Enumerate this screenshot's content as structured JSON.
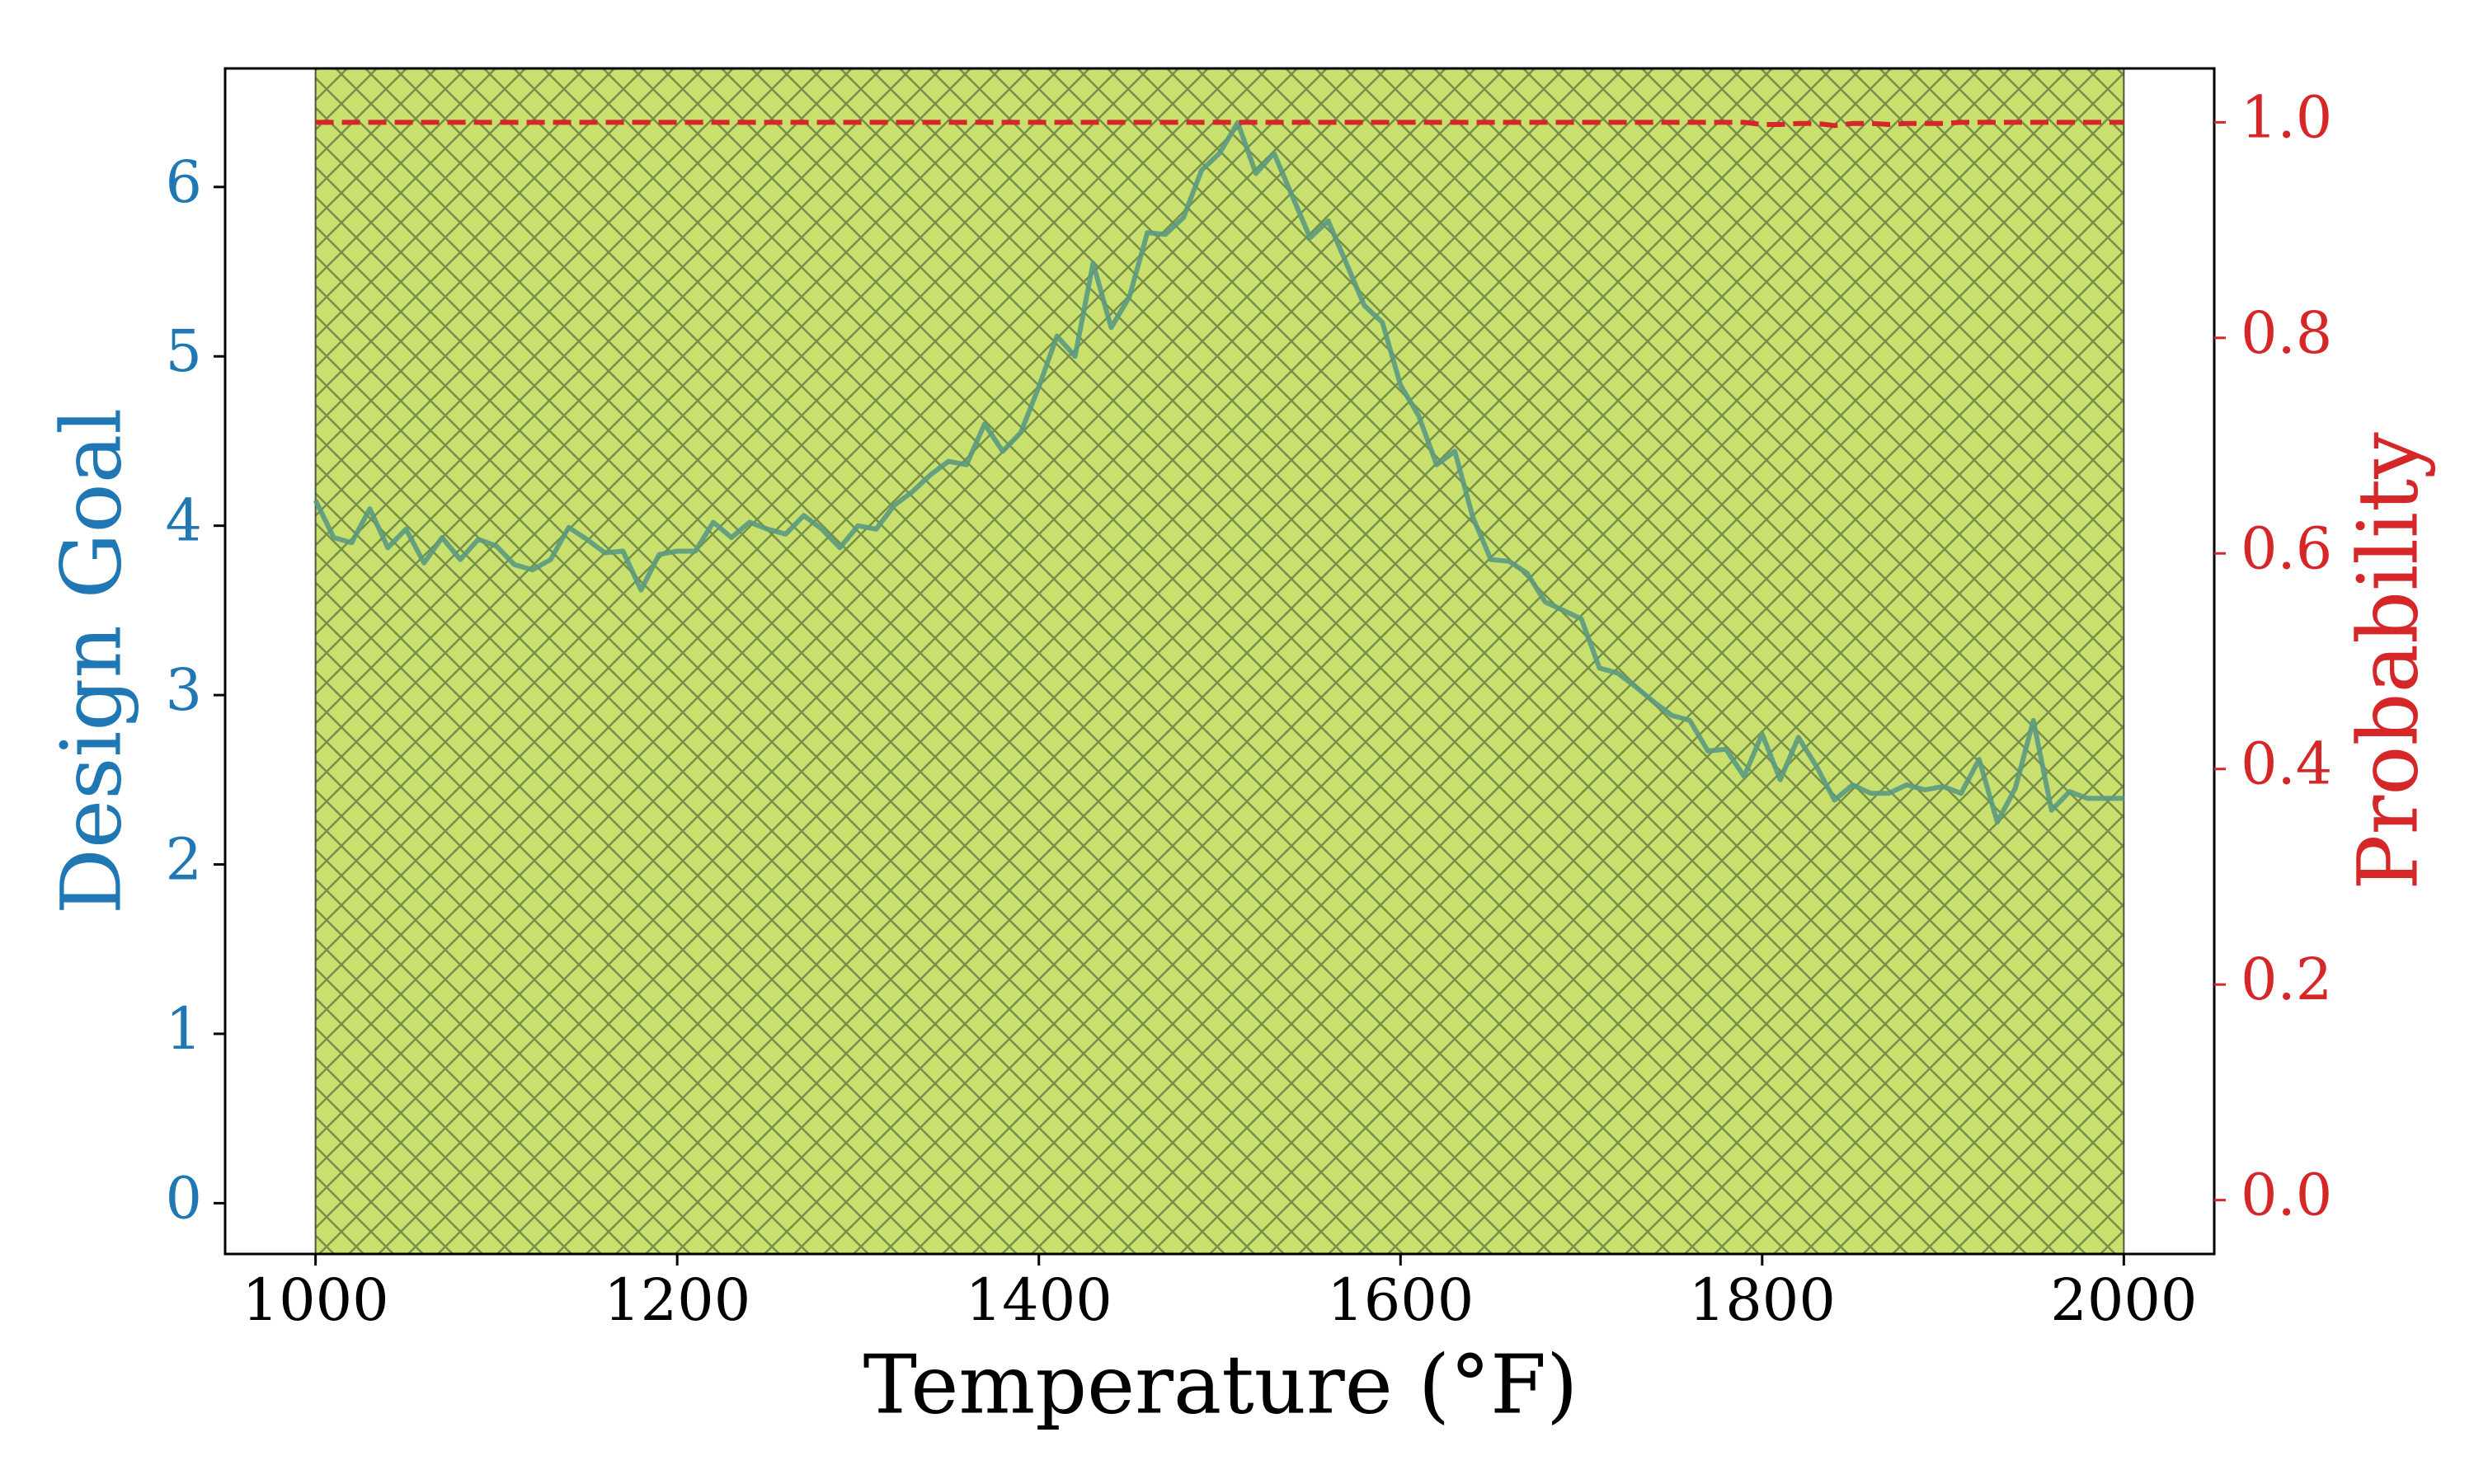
{
  "chart_data": {
    "type": "line",
    "xlabel": "Temperature (°F)",
    "ylabel": "Design Goal",
    "y2label": "Probability",
    "xlim": [
      950,
      2050
    ],
    "xticks": [
      1000,
      1200,
      1400,
      1600,
      1800,
      2000
    ],
    "ylim": [
      -0.3,
      6.7
    ],
    "yticks": [
      0,
      1,
      2,
      3,
      4,
      5,
      6
    ],
    "ycolor": "#1f77b4",
    "y2lim": [
      -0.05,
      1.05
    ],
    "y2ticks": [
      {
        "value": 0,
        "label": "0.0"
      },
      {
        "value": 0.2,
        "label": "0.2"
      },
      {
        "value": 0.4,
        "label": "0.4"
      },
      {
        "value": 0.6,
        "label": "0.6"
      },
      {
        "value": 0.8,
        "label": "0.8"
      },
      {
        "value": 1,
        "label": "1.0"
      }
    ],
    "y2color": "#d62728",
    "span": {
      "x": [
        1000,
        2000
      ],
      "color": "#c3db5e",
      "hatch": "xx"
    },
    "x": [
      1000,
      1010,
      1020,
      1030,
      1040,
      1050,
      1060,
      1070,
      1080,
      1090,
      1100,
      1110,
      1120,
      1130,
      1140,
      1150,
      1160,
      1170,
      1180,
      1190,
      1200,
      1210,
      1220,
      1230,
      1240,
      1250,
      1260,
      1270,
      1280,
      1290,
      1300,
      1310,
      1320,
      1330,
      1340,
      1350,
      1360,
      1370,
      1380,
      1390,
      1400,
      1410,
      1420,
      1430,
      1440,
      1450,
      1460,
      1470,
      1480,
      1490,
      1500,
      1510,
      1520,
      1530,
      1540,
      1550,
      1560,
      1570,
      1580,
      1590,
      1600,
      1610,
      1620,
      1630,
      1640,
      1650,
      1660,
      1670,
      1680,
      1690,
      1700,
      1710,
      1720,
      1730,
      1740,
      1750,
      1760,
      1770,
      1780,
      1790,
      1800,
      1810,
      1820,
      1830,
      1840,
      1850,
      1860,
      1870,
      1880,
      1890,
      1900,
      1910,
      1920,
      1930,
      1940,
      1950,
      1960,
      1970,
      1980,
      1990,
      2000
    ],
    "series": [
      {
        "color": "#5a9a80",
        "values": [
          4.15,
          3.93,
          3.9,
          4.1,
          3.87,
          3.98,
          3.78,
          3.93,
          3.8,
          3.92,
          3.88,
          3.77,
          3.74,
          3.8,
          3.99,
          3.92,
          3.84,
          3.85,
          3.62,
          3.83,
          3.85,
          3.85,
          4.02,
          3.93,
          4.02,
          3.98,
          3.95,
          4.06,
          3.98,
          3.87,
          4.0,
          3.98,
          4.12,
          4.2,
          4.3,
          4.38,
          4.36,
          4.6,
          4.44,
          4.55,
          4.82,
          5.12,
          5.0,
          5.55,
          5.17,
          5.35,
          5.73,
          5.72,
          5.82,
          6.1,
          6.2,
          6.38,
          6.08,
          6.2,
          5.95,
          5.7,
          5.8,
          5.55,
          5.3,
          5.2,
          4.83,
          4.65,
          4.36,
          4.44,
          4.05,
          3.8,
          3.79,
          3.72,
          3.55,
          3.5,
          3.45,
          3.16,
          3.13,
          3.05,
          2.96,
          2.88,
          2.85,
          2.67,
          2.68,
          2.52,
          2.77,
          2.5,
          2.75,
          2.58,
          2.38,
          2.47,
          2.42,
          2.42,
          2.47,
          2.44,
          2.46,
          2.42,
          2.62,
          2.25,
          2.45,
          2.85,
          2.32,
          2.43,
          2.39,
          2.39,
          2.39
        ]
      },
      {
        "color": "#d62728",
        "axis": "y2",
        "dash": true,
        "values": [
          1,
          1,
          1,
          1,
          1,
          1,
          1,
          1,
          1,
          1,
          1,
          1,
          1,
          1,
          1,
          1,
          1,
          1,
          1,
          1,
          1,
          1,
          1,
          1,
          1,
          1,
          1,
          1,
          1,
          1,
          1,
          1,
          1,
          1,
          1,
          1,
          1,
          1,
          1,
          1,
          1,
          1,
          1,
          1,
          1,
          1,
          1,
          1,
          1,
          1,
          1,
          1,
          1,
          1,
          1,
          1,
          1,
          1,
          1,
          1,
          1,
          1,
          1,
          1,
          1,
          1,
          1,
          1,
          1,
          1,
          1,
          1,
          1,
          1,
          1,
          1,
          1,
          1,
          1,
          1,
          0.998,
          0.998,
          0.999,
          0.999,
          0.997,
          0.999,
          0.999,
          0.998,
          0.999,
          0.999,
          0.999,
          1,
          1,
          1,
          1,
          1,
          1,
          1,
          1,
          1,
          1
        ]
      }
    ]
  }
}
